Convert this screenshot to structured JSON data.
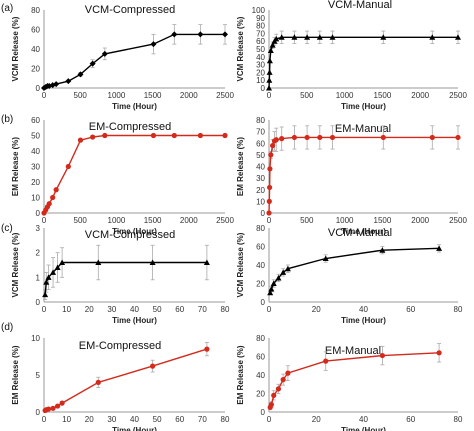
{
  "chart_data": [
    {
      "type": "line",
      "panel_label": "(a)",
      "title": "VCM-Compressed",
      "xlabel": "Time (Hour)",
      "ylabel": "VCM Release (%)",
      "xlim": [
        0,
        2500
      ],
      "ylim": [
        0,
        80
      ],
      "xticks": [
        0,
        500,
        1000,
        1500,
        2000,
        2500
      ],
      "yticks": [
        0,
        20,
        40,
        60,
        80
      ],
      "color": "#000000",
      "marker": "diamond",
      "x": [
        0,
        24,
        48,
        72,
        120,
        168,
        336,
        504,
        672,
        840,
        1512,
        1800,
        2160,
        2500
      ],
      "y": [
        0,
        1,
        2,
        2,
        3,
        4,
        7,
        14,
        25,
        35,
        45,
        55,
        55,
        55
      ],
      "err": [
        0,
        0,
        0,
        0,
        0,
        0,
        0,
        2,
        4,
        6,
        10,
        10,
        10,
        10
      ]
    },
    {
      "type": "line",
      "panel_label": "",
      "title": "VCM-Manual",
      "xlabel": "Time (Hour)",
      "ylabel": "VCM Release (%)",
      "xlim": [
        0,
        2500
      ],
      "ylim": [
        0,
        100
      ],
      "xticks": [
        0,
        500,
        1000,
        1500,
        2000,
        2500
      ],
      "yticks": [
        0,
        10,
        20,
        30,
        40,
        50,
        60,
        70,
        80,
        90,
        100
      ],
      "color": "#000000",
      "marker": "triangle",
      "x": [
        0,
        4,
        8,
        12,
        24,
        48,
        72,
        96,
        168,
        336,
        504,
        672,
        840,
        1512,
        2160,
        2500
      ],
      "y": [
        0,
        10,
        20,
        35,
        48,
        55,
        60,
        63,
        65,
        65,
        65,
        65,
        65,
        65,
        65,
        65
      ],
      "err": [
        0,
        0,
        0,
        0,
        2,
        4,
        5,
        6,
        8,
        8,
        8,
        8,
        8,
        8,
        8,
        8
      ]
    },
    {
      "type": "line",
      "panel_label": "(b)",
      "title": "EM-Compressed",
      "xlabel": "Time (Hour)",
      "ylabel": "EM Release (%)",
      "xlim": [
        0,
        2500
      ],
      "ylim": [
        0,
        60
      ],
      "xticks": [
        0,
        500,
        1000,
        1500,
        2000,
        2500
      ],
      "yticks": [
        0,
        10,
        20,
        30,
        40,
        50,
        60
      ],
      "color": "#d42a1c",
      "marker": "circle",
      "x": [
        0,
        24,
        48,
        72,
        120,
        168,
        336,
        504,
        672,
        840,
        1512,
        1800,
        2160,
        2500
      ],
      "y": [
        0,
        2,
        4,
        6,
        10,
        15,
        30,
        47,
        49,
        50,
        50,
        50,
        50,
        50
      ],
      "err": [
        0,
        0,
        0,
        0,
        0,
        0,
        0,
        1,
        1,
        1,
        1,
        1,
        1,
        1
      ]
    },
    {
      "type": "line",
      "panel_label": "",
      "title": "EM-Manual",
      "xlabel": "Time (Hour)",
      "ylabel": "EM Release (%)",
      "xlim": [
        0,
        2500
      ],
      "ylim": [
        0,
        80
      ],
      "xticks": [
        0,
        500,
        1000,
        1500,
        2000,
        2500
      ],
      "yticks": [
        0,
        10,
        20,
        30,
        40,
        50,
        60,
        70,
        80
      ],
      "color": "#d42a1c",
      "marker": "circle",
      "x": [
        0,
        4,
        8,
        12,
        24,
        48,
        72,
        96,
        168,
        336,
        504,
        672,
        840,
        1512,
        2160,
        2500
      ],
      "y": [
        0,
        10,
        22,
        38,
        50,
        58,
        62,
        63,
        64,
        65,
        65,
        65,
        65,
        65,
        65,
        65
      ],
      "err": [
        0,
        0,
        0,
        0,
        3,
        5,
        8,
        10,
        10,
        10,
        10,
        10,
        10,
        10,
        10,
        10
      ]
    },
    {
      "type": "line",
      "panel_label": "(c)",
      "title": "VCM-Compressed",
      "xlabel": "Time (Hour)",
      "ylabel": "VCM Release (%)",
      "xlim": [
        0,
        80
      ],
      "ylim": [
        0,
        3
      ],
      "xticks": [
        0,
        10,
        20,
        30,
        40,
        50,
        60,
        70,
        80
      ],
      "yticks": [
        0,
        1,
        2,
        3
      ],
      "color": "#000000",
      "marker": "triangle",
      "x": [
        0.5,
        1,
        2,
        4,
        6,
        8,
        24,
        48,
        72
      ],
      "y": [
        0.3,
        0.8,
        1.0,
        1.2,
        1.4,
        1.6,
        1.6,
        1.6,
        1.6
      ],
      "err": [
        0.2,
        0.4,
        0.5,
        0.6,
        0.6,
        0.6,
        0.7,
        0.7,
        0.7
      ]
    },
    {
      "type": "line",
      "panel_label": "",
      "title": "VCM-Manual",
      "xlabel": "Time (Hour)",
      "ylabel": "VCM Release (%)",
      "xlim": [
        0,
        80
      ],
      "ylim": [
        0,
        80
      ],
      "xticks": [
        0,
        20,
        40,
        60,
        80
      ],
      "yticks": [
        0,
        20,
        40,
        60,
        80
      ],
      "color": "#000000",
      "marker": "triangle",
      "x": [
        0.5,
        1,
        2,
        4,
        6,
        8,
        24,
        48,
        72
      ],
      "y": [
        10,
        14,
        20,
        26,
        32,
        36,
        47,
        56,
        58
      ],
      "err": [
        2,
        3,
        4,
        4,
        4,
        4,
        4,
        4,
        4
      ]
    },
    {
      "type": "line",
      "panel_label": "(d)",
      "title": "EM-Compressed",
      "xlabel": "Time (Hour)",
      "ylabel": "EM Release (%)",
      "xlim": [
        0,
        80
      ],
      "ylim": [
        0,
        10
      ],
      "xticks": [
        0,
        10,
        20,
        30,
        40,
        50,
        60,
        70,
        80
      ],
      "yticks": [
        0,
        5,
        10
      ],
      "color": "#d42a1c",
      "marker": "circle",
      "x": [
        0.5,
        1,
        2,
        4,
        6,
        8,
        24,
        48,
        72
      ],
      "y": [
        0.2,
        0.3,
        0.4,
        0.5,
        0.8,
        1.2,
        4.0,
        6.2,
        8.5
      ],
      "err": [
        0,
        0,
        0,
        0,
        0,
        0,
        0.7,
        0.8,
        0.9
      ]
    },
    {
      "type": "line",
      "panel_label": "",
      "title": "EM-Manual",
      "xlabel": "Time (Hour)",
      "ylabel": "EM Release (%)",
      "xlim": [
        0,
        80
      ],
      "ylim": [
        0,
        80
      ],
      "xticks": [
        0,
        20,
        40,
        60,
        80
      ],
      "yticks": [
        0,
        20,
        40,
        60,
        80
      ],
      "color": "#d42a1c",
      "marker": "circle",
      "x": [
        0.5,
        1,
        2,
        4,
        6,
        8,
        24,
        48,
        72
      ],
      "y": [
        5,
        8,
        18,
        25,
        35,
        42,
        55,
        61,
        64
      ],
      "err": [
        2,
        3,
        5,
        5,
        6,
        8,
        10,
        10,
        10
      ]
    }
  ]
}
